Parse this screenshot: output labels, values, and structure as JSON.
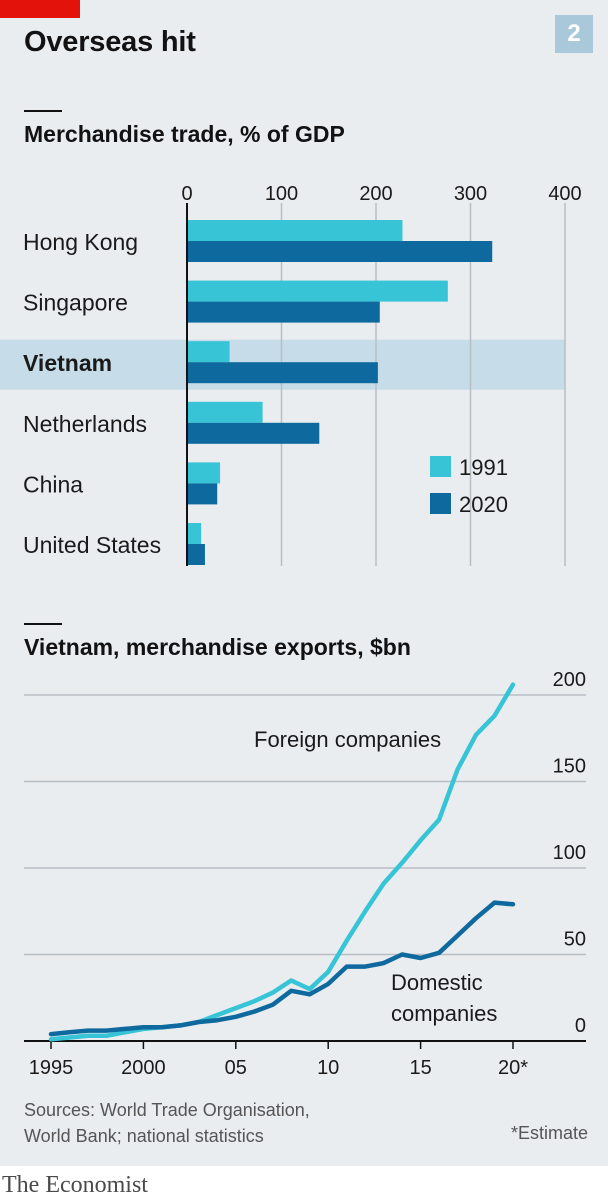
{
  "headline": "Overseas hit",
  "chart_number": "2",
  "colors": {
    "light": "#36c4d6",
    "dark": "#0e6a9e",
    "highlight": "#c6dce8",
    "grid": "#b7bec4"
  },
  "chart_data": [
    {
      "type": "bar",
      "title": "Merchandise trade, % of GDP",
      "categories": [
        "Hong Kong",
        "Singapore",
        "Vietnam",
        "Netherlands",
        "China",
        "United States"
      ],
      "highlight": "Vietnam",
      "series": [
        {
          "name": "1991",
          "values": [
            228,
            276,
            45,
            80,
            35,
            15
          ]
        },
        {
          "name": "2020",
          "values": [
            323,
            204,
            202,
            140,
            32,
            19
          ]
        }
      ],
      "xlim": [
        0,
        400
      ],
      "xticks": [
        0,
        100,
        200,
        300,
        400
      ],
      "xtick_labels": [
        "0",
        "100",
        "200",
        "300",
        "400"
      ],
      "legend": "right"
    },
    {
      "type": "line",
      "title": "Vietnam, merchandise exports, $bn",
      "x": [
        1995,
        1996,
        1997,
        1998,
        1999,
        2000,
        2001,
        2002,
        2003,
        2004,
        2005,
        2006,
        2007,
        2008,
        2009,
        2010,
        2011,
        2012,
        2013,
        2014,
        2015,
        2016,
        2017,
        2018,
        2019,
        2020
      ],
      "series": [
        {
          "name": "Foreign companies",
          "values": [
            1,
            2,
            3,
            3,
            5,
            7,
            8,
            9,
            11,
            15,
            19,
            23,
            28,
            35,
            30,
            40,
            58,
            75,
            91,
            103,
            116,
            128,
            157,
            177,
            188,
            206
          ]
        },
        {
          "name": "Domestic companies",
          "values": [
            4,
            5,
            6,
            6,
            7,
            8,
            8,
            9,
            11,
            12,
            14,
            17,
            21,
            29,
            27,
            33,
            43,
            43,
            45,
            50,
            48,
            51,
            61,
            71,
            80,
            79
          ]
        }
      ],
      "ylim": [
        0,
        200
      ],
      "yticks": [
        0,
        50,
        100,
        150,
        200
      ],
      "ytick_labels": [
        "0",
        "50",
        "100",
        "150",
        "200"
      ],
      "xticks": [
        1995,
        2000,
        2005,
        2010,
        2015,
        2020
      ],
      "xtick_labels": [
        "1995",
        "2000",
        "05",
        "10",
        "15",
        "20*"
      ],
      "series_labels": [
        "Foreign companies",
        "Domestic",
        "companies"
      ]
    }
  ],
  "source": [
    "Sources: World Trade Organisation,",
    "World Bank; national statistics"
  ],
  "note": "*Estimate",
  "brand": "The Economist"
}
